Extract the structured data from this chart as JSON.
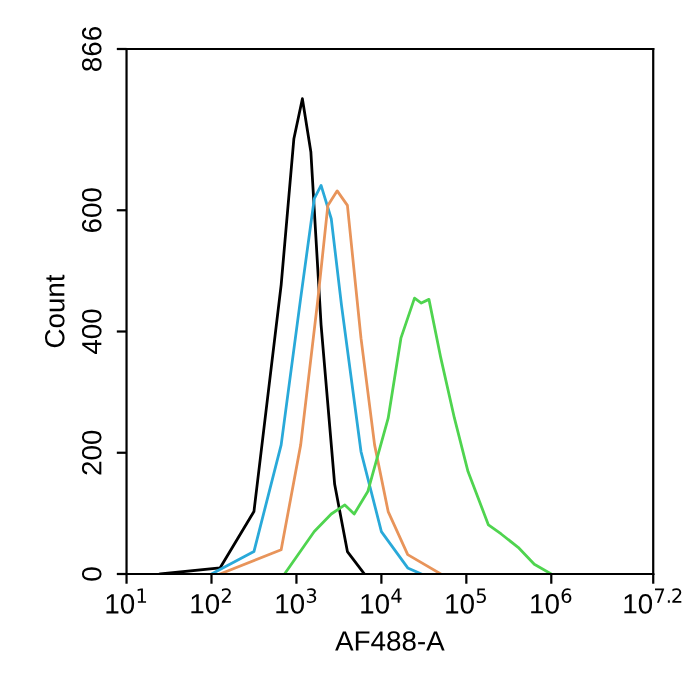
{
  "chart_data": {
    "type": "line",
    "xlabel": "AF488-A",
    "ylabel": "Count",
    "log": "x",
    "grid": false,
    "marker": "none",
    "line_style": "solid",
    "xlim": [
      10,
      15848932
    ],
    "xticks": [
      {
        "value": 10,
        "label": "10$^{1}$"
      },
      {
        "value": 100,
        "label": "10$^{2}$"
      },
      {
        "value": 1000,
        "label": "10$^{3}$"
      },
      {
        "value": 10000,
        "label": "10$^{4}$"
      },
      {
        "value": 100000,
        "label": "10$^{5}$"
      },
      {
        "value": 1000000,
        "label": "10$^{6}$"
      },
      {
        "value": 15848932,
        "label": "10$^{7.2}$"
      }
    ],
    "ylim": [
      0,
      866
    ],
    "yticks": [
      0,
      200,
      400,
      600,
      866
    ],
    "series": [
      {
        "color": "#000000",
        "x": [
          25,
          126,
          316,
          661,
          933,
          1175,
          1479,
          1950,
          2818,
          3981,
          6310
        ],
        "values": [
          0,
          10,
          103,
          477,
          718,
          784,
          696,
          411,
          148,
          37,
          0
        ]
      },
      {
        "color": "#29a9d9",
        "x": [
          100,
          316,
          661,
          1122,
          1622,
          1950,
          2570,
          3388,
          5754,
          10000,
          20420,
          29510
        ],
        "values": [
          0,
          37,
          213,
          455,
          619,
          641,
          586,
          444,
          202,
          70,
          10,
          0
        ]
      },
      {
        "color": "#e8945a",
        "x": [
          126,
          661,
          1122,
          1778,
          2344,
          3020,
          3981,
          5754,
          8318,
          12020,
          20420,
          50120
        ],
        "values": [
          0,
          40,
          213,
          450,
          608,
          632,
          608,
          389,
          213,
          103,
          32,
          0
        ]
      },
      {
        "color": "#4fd44f",
        "x": [
          724,
          1622,
          2570,
          3715,
          4786,
          6918,
          12020,
          16980,
          24550,
          29510,
          36310,
          50120,
          72440,
          104700,
          182000,
          257000,
          407000,
          631000,
          1000000
        ],
        "values": [
          0,
          70,
          99,
          114,
          99,
          136,
          257,
          389,
          455,
          447,
          453,
          356,
          257,
          169,
          81,
          66,
          44,
          16,
          0
        ]
      }
    ]
  }
}
